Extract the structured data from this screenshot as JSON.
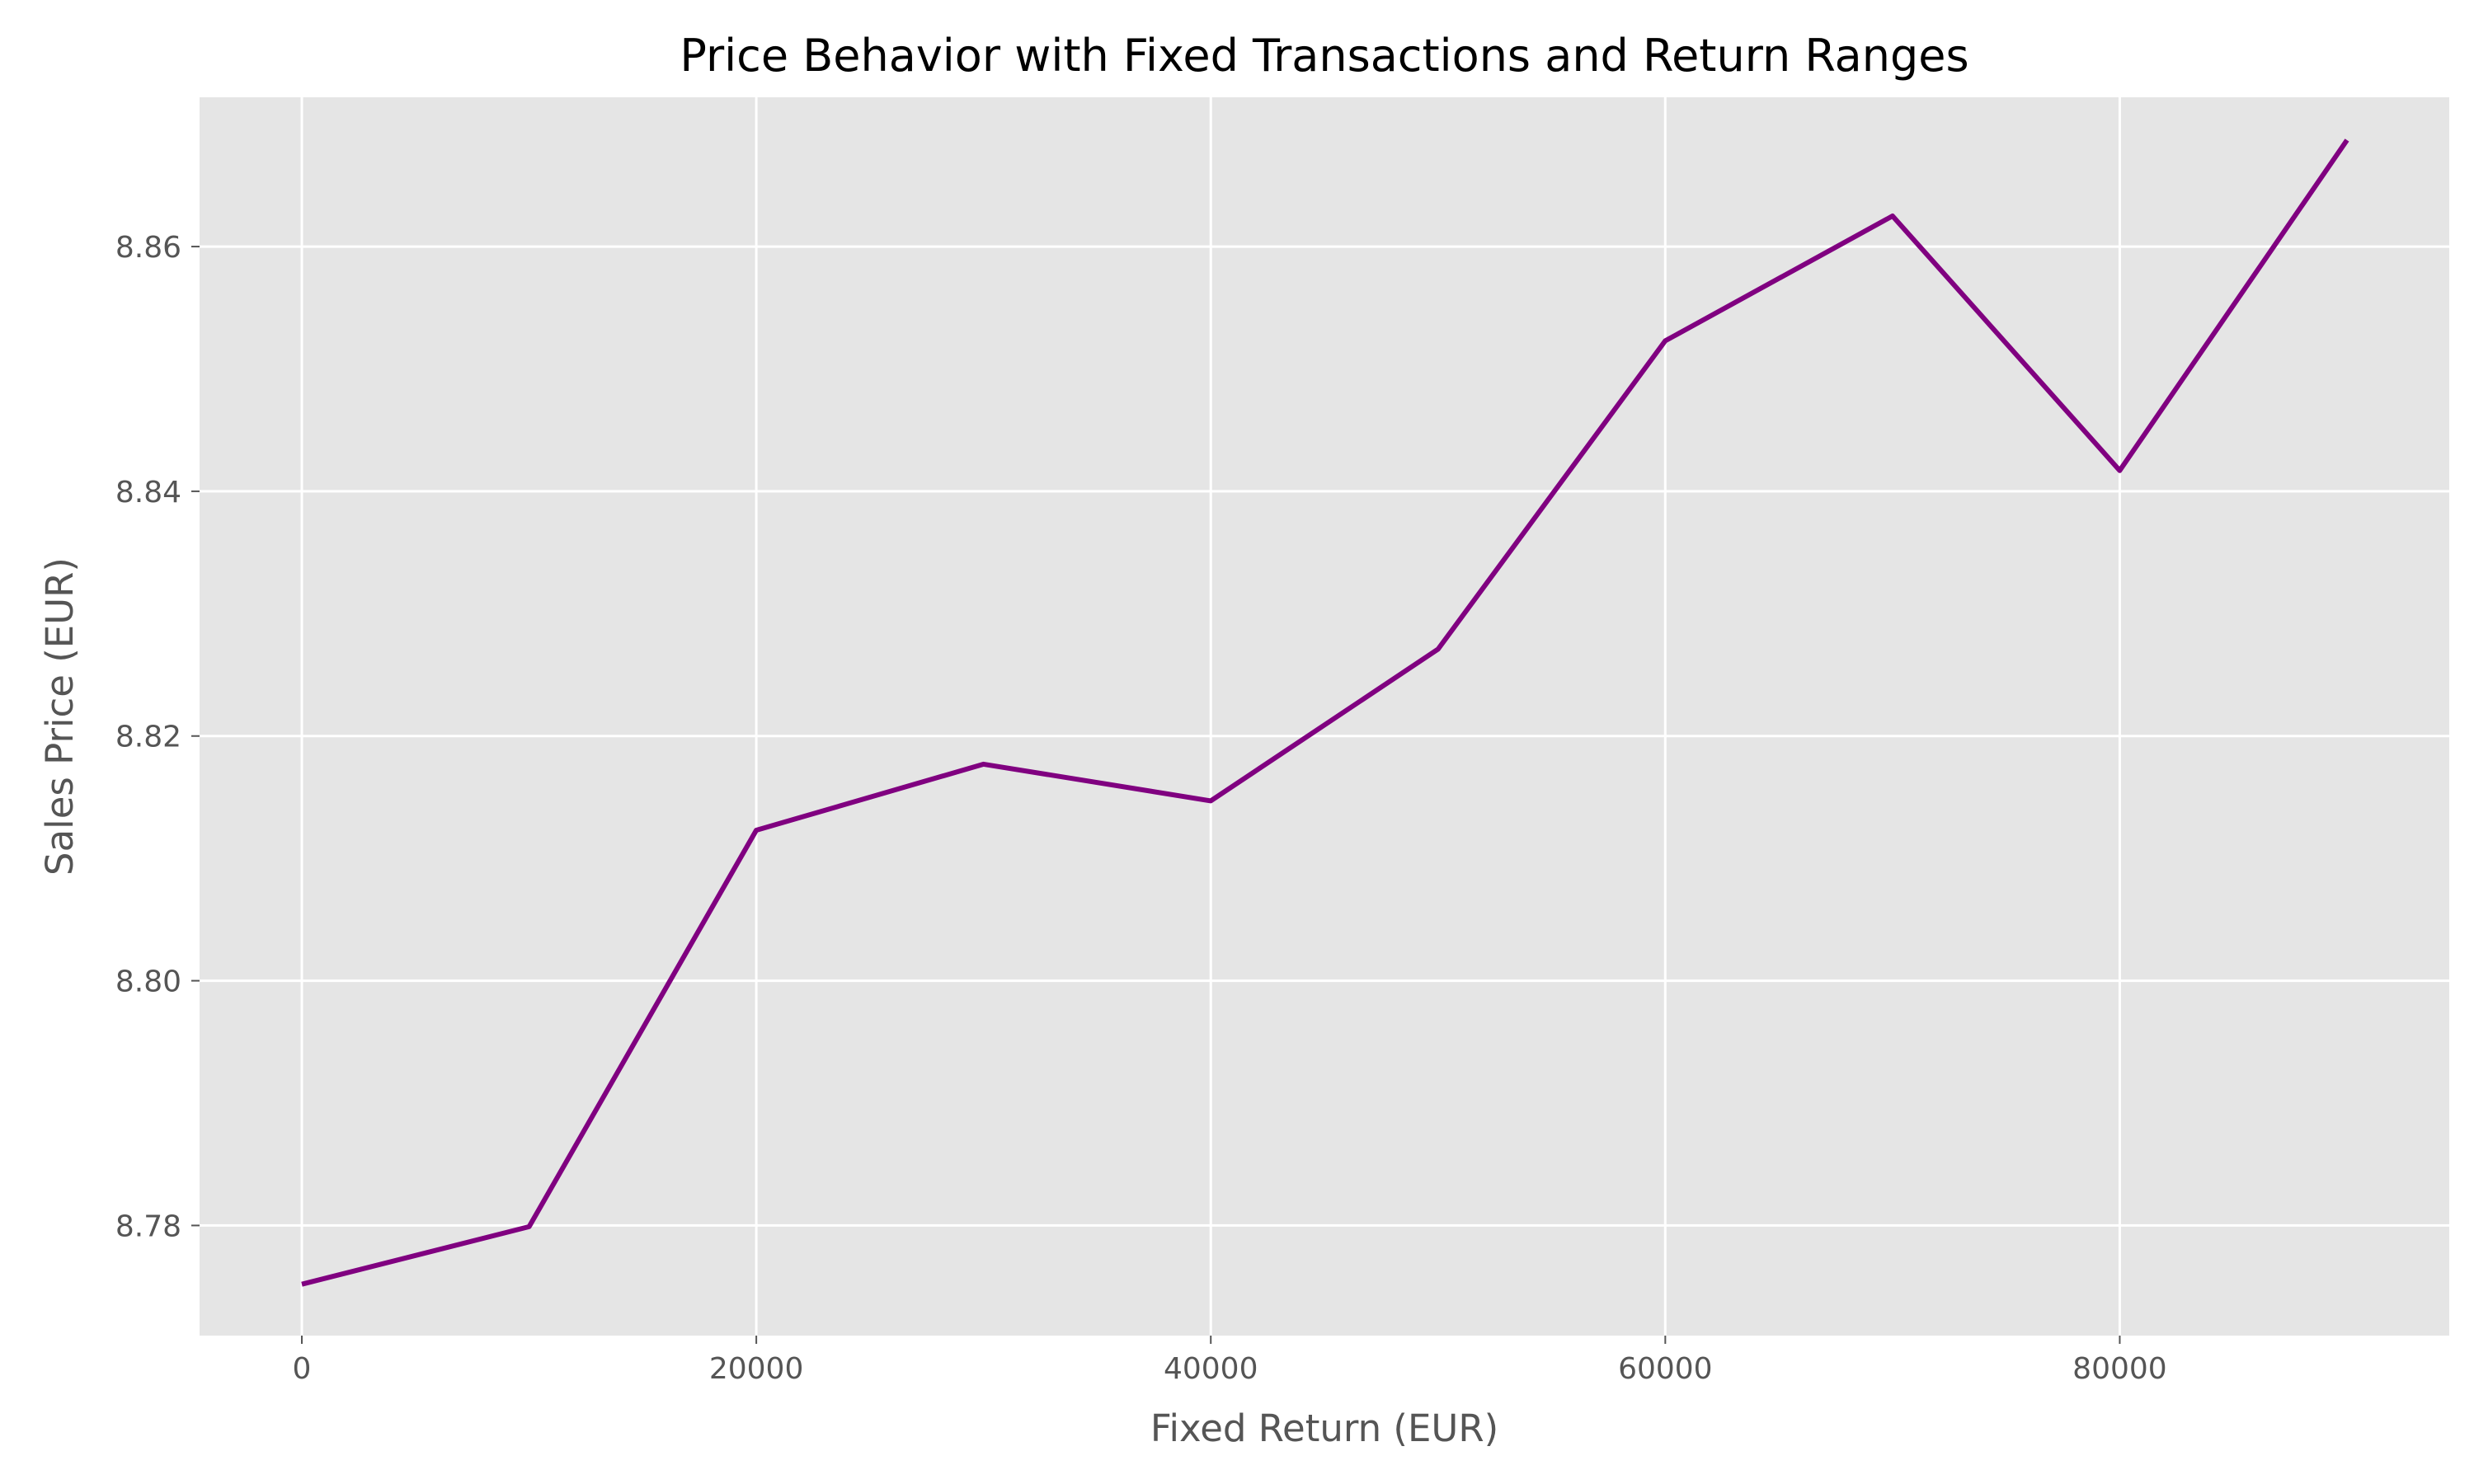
{
  "chart_data": {
    "type": "line",
    "title": "Price Behavior with Fixed Transactions and Return Ranges",
    "xlabel": "Fixed Return (EUR)",
    "ylabel": "Sales Price (EUR)",
    "x": [
      0,
      10000,
      20000,
      30000,
      40000,
      50000,
      60000,
      70000,
      80000,
      90000
    ],
    "series": [
      {
        "values": [
          8.7752,
          8.7799,
          8.8123,
          8.8177,
          8.8147,
          8.8271,
          8.8523,
          8.8625,
          8.8417,
          8.8687
        ],
        "color": "#800080"
      }
    ],
    "xlim": [
      -4500,
      94500
    ],
    "ylim": [
      8.771,
      8.8722
    ],
    "xticks": [
      0,
      20000,
      40000,
      60000,
      80000
    ],
    "yticks": [
      8.78,
      8.8,
      8.82,
      8.84,
      8.86
    ],
    "xtick_labels": [
      "0",
      "20000",
      "40000",
      "60000",
      "80000"
    ],
    "ytick_labels": [
      "8.78",
      "8.80",
      "8.82",
      "8.84",
      "8.86"
    ],
    "grid": true,
    "background": "#e5e5e5",
    "legend": "none"
  }
}
